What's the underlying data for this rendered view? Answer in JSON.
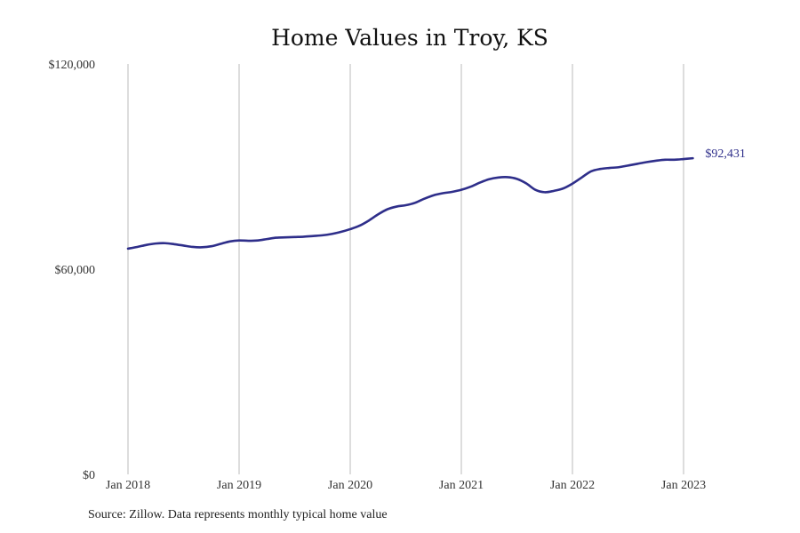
{
  "source_note": "Source: Zillow. Data represents monthly typical home value",
  "colors": {
    "line": "#2e2e8a",
    "grid": "#bbbbbb",
    "text": "#222222"
  },
  "chart_data": {
    "type": "line",
    "title": "Home Values in Troy, KS",
    "xlabel": "",
    "ylabel": "",
    "ylim": [
      0,
      120000
    ],
    "yticks": [
      0,
      60000,
      120000
    ],
    "ytick_labels": [
      "$0",
      "$60,000",
      "$120,000"
    ],
    "xlim": [
      "2018-01",
      "2023-02"
    ],
    "xticks": [
      "2018-01",
      "2019-01",
      "2020-01",
      "2021-01",
      "2022-01",
      "2023-01"
    ],
    "xtick_labels": [
      "Jan 2018",
      "Jan 2019",
      "Jan 2020",
      "Jan 2021",
      "Jan 2022",
      "Jan 2023"
    ],
    "grid": {
      "x": true,
      "y": false
    },
    "legend": "none",
    "end_label": "$92,431",
    "series": [
      {
        "x": [
          "2018-01",
          "2018-02",
          "2018-03",
          "2018-04",
          "2018-05",
          "2018-06",
          "2018-07",
          "2018-08",
          "2018-09",
          "2018-10",
          "2018-11",
          "2018-12",
          "2019-01",
          "2019-02",
          "2019-03",
          "2019-04",
          "2019-05",
          "2019-06",
          "2019-07",
          "2019-08",
          "2019-09",
          "2019-10",
          "2019-11",
          "2019-12",
          "2020-01",
          "2020-02",
          "2020-03",
          "2020-04",
          "2020-05",
          "2020-06",
          "2020-07",
          "2020-08",
          "2020-09",
          "2020-10",
          "2020-11",
          "2020-12",
          "2021-01",
          "2021-02",
          "2021-03",
          "2021-04",
          "2021-05",
          "2021-06",
          "2021-07",
          "2021-08",
          "2021-09",
          "2021-10",
          "2021-11",
          "2021-12",
          "2022-01",
          "2022-02",
          "2022-03",
          "2022-04",
          "2022-05",
          "2022-06",
          "2022-07",
          "2022-08",
          "2022-09",
          "2022-10",
          "2022-11",
          "2022-12",
          "2023-01",
          "2023-02"
        ],
        "values": [
          66000,
          66500,
          67100,
          67500,
          67600,
          67300,
          66900,
          66500,
          66400,
          66700,
          67400,
          68100,
          68400,
          68300,
          68400,
          68800,
          69200,
          69300,
          69400,
          69500,
          69700,
          69900,
          70300,
          70900,
          71700,
          72700,
          74200,
          76000,
          77500,
          78300,
          78700,
          79400,
          80600,
          81600,
          82200,
          82600,
          83200,
          84100,
          85300,
          86300,
          86800,
          86900,
          86400,
          85100,
          83200,
          82500,
          82900,
          83600,
          85000,
          86800,
          88600,
          89300,
          89600,
          89800,
          90300,
          90800,
          91300,
          91700,
          92000,
          92000,
          92200,
          92431
        ]
      }
    ]
  }
}
